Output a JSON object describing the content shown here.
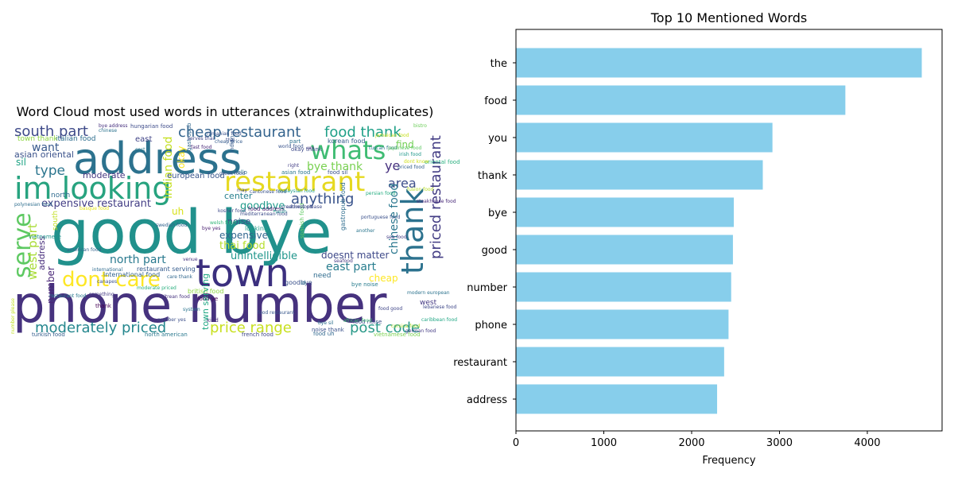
{
  "wordcloud": {
    "title": "Word Cloud most used words in utterances (xtrainwithduplicates)",
    "words": [
      {
        "text": "good bye",
        "color": "#21918c"
      },
      {
        "text": "phone number",
        "color": "#46327e"
      },
      {
        "text": "address",
        "color": "#2c728e"
      },
      {
        "text": "im looking",
        "color": "#27a37f"
      },
      {
        "text": "town",
        "color": "#3b2f7e"
      },
      {
        "text": "restaurant",
        "color": "#e6d920"
      },
      {
        "text": "whats",
        "color": "#3fbc73"
      },
      {
        "text": "thank",
        "color": "#2c728e"
      },
      {
        "text": "serve",
        "color": "#5ec962"
      },
      {
        "text": "dont care",
        "color": "#fde725"
      },
      {
        "text": "moderately priced",
        "color": "#25878e"
      },
      {
        "text": "price range",
        "color": "#c8e020"
      },
      {
        "text": "post code",
        "color": "#2c9a8a"
      },
      {
        "text": "south part",
        "color": "#3e4a89"
      },
      {
        "text": "cheap restaurant",
        "color": "#33638d"
      },
      {
        "text": "food thank",
        "color": "#1fa088"
      },
      {
        "text": "priced restaurant",
        "color": "#433d84"
      },
      {
        "text": "type",
        "color": "#2b758e"
      },
      {
        "text": "want",
        "color": "#38598c"
      },
      {
        "text": "anything",
        "color": "#3a548c"
      },
      {
        "text": "area",
        "color": "#3d4e8a"
      },
      {
        "text": "bye thank",
        "color": "#79d151"
      },
      {
        "text": "ye",
        "color": "#46307e"
      },
      {
        "text": "expensive restaurant",
        "color": "#433e85"
      },
      {
        "text": "goodbye",
        "color": "#1f9a8a"
      },
      {
        "text": "north part",
        "color": "#29798e"
      },
      {
        "text": "east part",
        "color": "#287d8e"
      },
      {
        "text": "thai food",
        "color": "#b5de2b"
      },
      {
        "text": "unintelligible",
        "color": "#1f968b"
      },
      {
        "text": "doesnt matter",
        "color": "#3e4989"
      },
      {
        "text": "chinese food",
        "color": "#2a778e"
      },
      {
        "text": "expensive",
        "color": "#31668e"
      },
      {
        "text": "noise",
        "color": "#3b528b"
      },
      {
        "text": "center",
        "color": "#277f8e"
      },
      {
        "text": "west part",
        "color": "#a8db34"
      },
      {
        "text": "indian food",
        "color": "#c5e021"
      },
      {
        "text": "number",
        "color": "#482576"
      },
      {
        "text": "address",
        "color": "#472d7b"
      },
      {
        "text": "find",
        "color": "#73d056"
      },
      {
        "text": "moderate",
        "color": "#453781"
      },
      {
        "text": "european food",
        "color": "#39568c"
      },
      {
        "text": "cheap",
        "color": "#fde725"
      },
      {
        "text": "international food",
        "color": "#33638d"
      },
      {
        "text": "restaurant serving",
        "color": "#365c8d"
      },
      {
        "text": "british food",
        "color": "#8fd744"
      },
      {
        "text": "food ye",
        "color": "#440154"
      },
      {
        "text": "need",
        "color": "#2f6c8e"
      },
      {
        "text": "okay",
        "color": "#fde725"
      },
      {
        "text": "north",
        "color": "#2f6b8e"
      },
      {
        "text": "italian food",
        "color": "#2e6e8e"
      },
      {
        "text": "asian oriental",
        "color": "#3b528b"
      },
      {
        "text": "town thank",
        "color": "#8fd744"
      },
      {
        "text": "sil",
        "color": "#20a486"
      },
      {
        "text": "east",
        "color": "#414487"
      },
      {
        "text": "uh",
        "color": "#d8e219"
      },
      {
        "text": "looking",
        "color": "#1e9c89"
      },
      {
        "text": "west",
        "color": "#443983"
      },
      {
        "text": "bye noise",
        "color": "#287c8e"
      },
      {
        "text": "food noise",
        "color": "#3e4c8a"
      },
      {
        "text": "kind",
        "color": "#472c7a"
      },
      {
        "text": "french food",
        "color": "#3f4788"
      },
      {
        "text": "food uh",
        "color": "#31688e"
      },
      {
        "text": "vietnamese food",
        "color": "#7ad151"
      },
      {
        "text": "north american",
        "color": "#2a788e"
      },
      {
        "text": "turkish food",
        "color": "#355e8d"
      },
      {
        "text": "noise thank",
        "color": "#3b528b"
      },
      {
        "text": "town serving",
        "color": "#22a884"
      },
      {
        "text": "south",
        "color": "#c2df23"
      },
      {
        "text": "thank",
        "color": "#440154"
      },
      {
        "text": "part",
        "color": "#2c728e"
      },
      {
        "text": "okay thank",
        "color": "#3e4a89"
      },
      {
        "text": "right",
        "color": "#433e85"
      },
      {
        "text": "hello",
        "color": "#2d718e"
      },
      {
        "text": "asian food",
        "color": "#2a768e"
      },
      {
        "text": "food sil",
        "color": "#3a538b"
      },
      {
        "text": "korean food",
        "color": "#365d8d"
      },
      {
        "text": "indian",
        "color": "#375a8c"
      },
      {
        "text": "food address",
        "color": "#481b6d"
      },
      {
        "text": "goodbye",
        "color": "#3b518b"
      },
      {
        "text": "id",
        "color": "#2c728e"
      },
      {
        "text": "bye address",
        "color": "#46307e"
      },
      {
        "text": "hungarian food",
        "color": "#3e4c8a"
      },
      {
        "text": "gastropub",
        "color": "#31678e"
      },
      {
        "text": "spanish food",
        "color": "#5ec962"
      },
      {
        "text": "oriental food",
        "color": "#29af7f"
      },
      {
        "text": "may",
        "color": "#3e4989"
      },
      {
        "text": "mediterranean food",
        "color": "#3d4d8a"
      },
      {
        "text": "portuguese food",
        "color": "#3b518b"
      },
      {
        "text": "fusion food",
        "color": "#b8de29"
      },
      {
        "text": "seafood",
        "color": "#443a83"
      },
      {
        "text": "food good",
        "color": "#404688"
      },
      {
        "text": "gastropub food",
        "color": "#2e6d8e"
      },
      {
        "text": "vietnamese",
        "color": "#1f948c"
      },
      {
        "text": "number please",
        "color": "#c0df25"
      },
      {
        "text": "modern european",
        "color": "#2c738e"
      },
      {
        "text": "creative food",
        "color": "#3d4e8a"
      },
      {
        "text": "venue",
        "color": "#46337f"
      },
      {
        "text": "system",
        "color": "#2b748e"
      },
      {
        "text": "something",
        "color": "#443983"
      },
      {
        "text": "restaurant food",
        "color": "#2a788e"
      },
      {
        "text": "persian food",
        "color": "#26ad81"
      },
      {
        "text": "african food",
        "color": "#3fbc73"
      },
      {
        "text": "corsica food",
        "color": "#addc30"
      },
      {
        "text": "caribbean food",
        "color": "#22a785"
      },
      {
        "text": "bye sil",
        "color": "#2d708e"
      },
      {
        "text": "number yes",
        "color": "#3c4f8a"
      },
      {
        "text": "care thank",
        "color": "#31688e"
      },
      {
        "text": "food restaurant",
        "color": "#38588c"
      },
      {
        "text": "address please",
        "color": "#3e4a89"
      },
      {
        "text": "bye yes",
        "color": "#481f70"
      },
      {
        "text": "basque food",
        "color": "#e5e419"
      },
      {
        "text": "international",
        "color": "#2f6b8e"
      },
      {
        "text": "moderate priced",
        "color": "#29af7f"
      },
      {
        "text": "polynesian food",
        "color": "#2e6e8e"
      },
      {
        "text": "american food",
        "color": "#33638d"
      },
      {
        "text": "canapes",
        "color": "#3b518b"
      },
      {
        "text": "eritrean food",
        "color": "#46337f"
      },
      {
        "text": "malaysian food",
        "color": "#1f9e89"
      },
      {
        "text": "world food",
        "color": "#3a548c"
      },
      {
        "text": "lebanese food",
        "color": "#3f4889"
      },
      {
        "text": "um",
        "color": "#46327e"
      },
      {
        "text": "another",
        "color": "#2a768e"
      },
      {
        "text": "tuscan food",
        "color": "#2b758e"
      },
      {
        "text": "jamaican food",
        "color": "#c8e020"
      },
      {
        "text": "fast food",
        "color": "#482878"
      },
      {
        "text": "cantonese food",
        "color": "#3a538b"
      },
      {
        "text": "swedish food",
        "color": "#32648e"
      },
      {
        "text": "welsh food",
        "color": "#35b779"
      },
      {
        "text": "german food",
        "color": "#443b84"
      },
      {
        "text": "japanese food",
        "color": "#5ec962"
      },
      {
        "text": "steakhouse food",
        "color": "#482979"
      },
      {
        "text": "romanian food",
        "color": "#3b528b"
      },
      {
        "text": "thai",
        "color": "#3d4e8a"
      },
      {
        "text": "irish food",
        "color": "#1f988b"
      },
      {
        "text": "dont know",
        "color": "#d0e11c"
      },
      {
        "text": "cheap price",
        "color": "#365c8d"
      },
      {
        "text": "chinese",
        "color": "#2c738e"
      },
      {
        "text": "priced food",
        "color": "#34618d"
      },
      {
        "text": "bistro",
        "color": "#6ccd5a"
      },
      {
        "text": "serves thai",
        "color": "#3f4788"
      },
      {
        "text": "cost",
        "color": "#2a788e"
      },
      {
        "text": "sea food",
        "color": "#433e85"
      },
      {
        "text": "kosher food",
        "color": "#3e4c8a"
      },
      {
        "text": "yeah",
        "color": "#24878e"
      },
      {
        "text": "greek food",
        "color": "#39568c"
      },
      {
        "text": "dont want",
        "color": "#3d4d8a"
      },
      {
        "text": "bye noise",
        "color": "#482677"
      },
      {
        "text": "uh yes",
        "color": "#2f6c8e"
      },
      {
        "text": "spanish",
        "color": "#d5e21a"
      }
    ]
  },
  "bar_chart": {
    "bar_color": "#87ceeb"
  },
  "chart_data": {
    "type": "bar",
    "orientation": "horizontal",
    "title": "Top 10 Mentioned Words",
    "xlabel": "Frequency",
    "ylabel": "",
    "categories": [
      "the",
      "food",
      "you",
      "thank",
      "bye",
      "good",
      "number",
      "phone",
      "restaurant",
      "address"
    ],
    "values": [
      4620,
      3750,
      2920,
      2810,
      2480,
      2470,
      2450,
      2420,
      2370,
      2290
    ],
    "xlim": [
      0,
      4851
    ],
    "xticks": [
      0,
      1000,
      2000,
      3000,
      4000
    ],
    "grid": false,
    "legend": "none"
  }
}
